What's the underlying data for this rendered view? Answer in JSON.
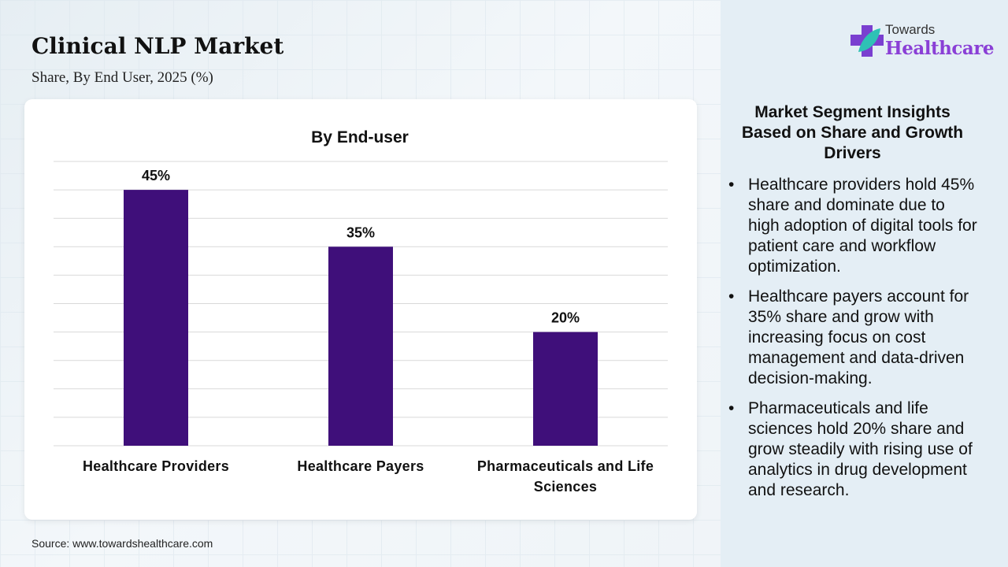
{
  "header": {
    "title": "Clinical NLP Market",
    "subtitle": "Share, By End User, 2025 (%)"
  },
  "logo": {
    "line1": "Towards",
    "line2": "Healthcare"
  },
  "source": "Source: www.towardshealthcare.com",
  "insights": {
    "title": "Market Segment Insights Based on Share and Growth Drivers",
    "items": [
      "Healthcare providers hold 45% share and dominate due to high adoption of digital tools for patient care and workflow optimization.",
      "Healthcare payers account for 35% share and grow with increasing focus on cost management and data-driven decision-making.",
      "Pharmaceuticals and life sciences hold 20% share and grow steadily with rising use of analytics in drug development and research."
    ]
  },
  "colors": {
    "bar": "#3f0f7a",
    "grid": "#d9d9d9"
  },
  "chart_data": {
    "type": "bar",
    "title": "By End-user",
    "categories": [
      [
        "Healthcare Providers"
      ],
      [
        "Healthcare Payers"
      ],
      [
        "Pharmaceuticals and Life",
        "Sciences"
      ]
    ],
    "values": [
      45,
      35,
      20
    ],
    "labels": [
      "45%",
      "35%",
      "20%"
    ],
    "ylim": [
      0,
      50
    ],
    "ytick_step": 5,
    "grid": true,
    "xlabel": "",
    "ylabel": ""
  }
}
